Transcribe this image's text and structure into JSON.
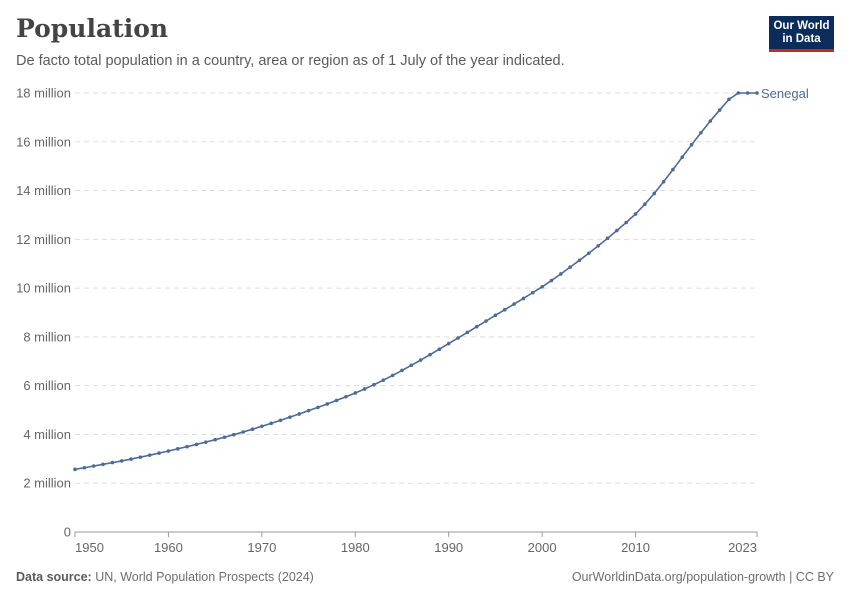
{
  "header": {
    "title": "Population",
    "subtitle": "De facto total population in a country, area or region as of 1 July of the year indicated."
  },
  "logo": {
    "line1": "Our World",
    "line2": "in Data"
  },
  "footer": {
    "source_label": "Data source:",
    "source_text": "UN, World Population Prospects (2024)",
    "right_text": "OurWorldinData.org/population-growth | CC BY"
  },
  "colors": {
    "series": "#4c6a9c",
    "grid": "#dddddd",
    "axis": "#999999",
    "logo_bg": "#0c2d5b",
    "logo_accent": "#ce261e"
  },
  "chart_data": {
    "type": "line",
    "title": "Population",
    "subtitle": "De facto total population in a country, area or region as of 1 July of the year indicated.",
    "xlabel": "",
    "ylabel": "",
    "xlim": [
      1950,
      2023
    ],
    "ylim": [
      0,
      18000000
    ],
    "x_ticks": [
      1950,
      1960,
      1970,
      1980,
      1990,
      2000,
      2010,
      2023
    ],
    "y_ticks": [
      0,
      2000000,
      4000000,
      6000000,
      8000000,
      10000000,
      12000000,
      14000000,
      16000000,
      18000000
    ],
    "y_tick_labels": [
      "0",
      "2 million",
      "4 million",
      "6 million",
      "8 million",
      "10 million",
      "12 million",
      "14 million",
      "16 million",
      "18 million"
    ],
    "grid": true,
    "legend": "end-label",
    "series": [
      {
        "name": "Senegal",
        "x": [
          1950,
          1951,
          1952,
          1953,
          1954,
          1955,
          1956,
          1957,
          1958,
          1959,
          1960,
          1961,
          1962,
          1963,
          1964,
          1965,
          1966,
          1967,
          1968,
          1969,
          1970,
          1971,
          1972,
          1973,
          1974,
          1975,
          1976,
          1977,
          1978,
          1979,
          1980,
          1981,
          1982,
          1983,
          1984,
          1985,
          1986,
          1987,
          1988,
          1989,
          1990,
          1991,
          1992,
          1993,
          1994,
          1995,
          1996,
          1997,
          1998,
          1999,
          2000,
          2001,
          2002,
          2003,
          2004,
          2005,
          2006,
          2007,
          2008,
          2009,
          2010,
          2011,
          2012,
          2013,
          2014,
          2015,
          2016,
          2017,
          2018,
          2019,
          2020,
          2021,
          2022,
          2023
        ],
        "values": [
          2570000,
          2635000,
          2705000,
          2775000,
          2845000,
          2915000,
          2990000,
          3070000,
          3150000,
          3235000,
          3320000,
          3410000,
          3500000,
          3590000,
          3685000,
          3785000,
          3885000,
          3990000,
          4100000,
          4215000,
          4335000,
          4455000,
          4580000,
          4710000,
          4840000,
          4975000,
          5110000,
          5250000,
          5395000,
          5545000,
          5700000,
          5865000,
          6040000,
          6225000,
          6420000,
          6625000,
          6835000,
          7050000,
          7270000,
          7495000,
          7725000,
          7955000,
          8185000,
          8420000,
          8650000,
          8885000,
          9115000,
          9345000,
          9575000,
          9815000,
          10055000,
          10310000,
          10580000,
          10860000,
          11140000,
          11430000,
          11730000,
          12040000,
          12360000,
          12690000,
          13040000,
          13440000,
          13880000,
          14360000,
          14860000,
          15370000,
          15880000,
          16370000,
          16850000,
          17300000,
          17740000,
          18170000,
          18580000,
          19000000
        ]
      }
    ]
  }
}
